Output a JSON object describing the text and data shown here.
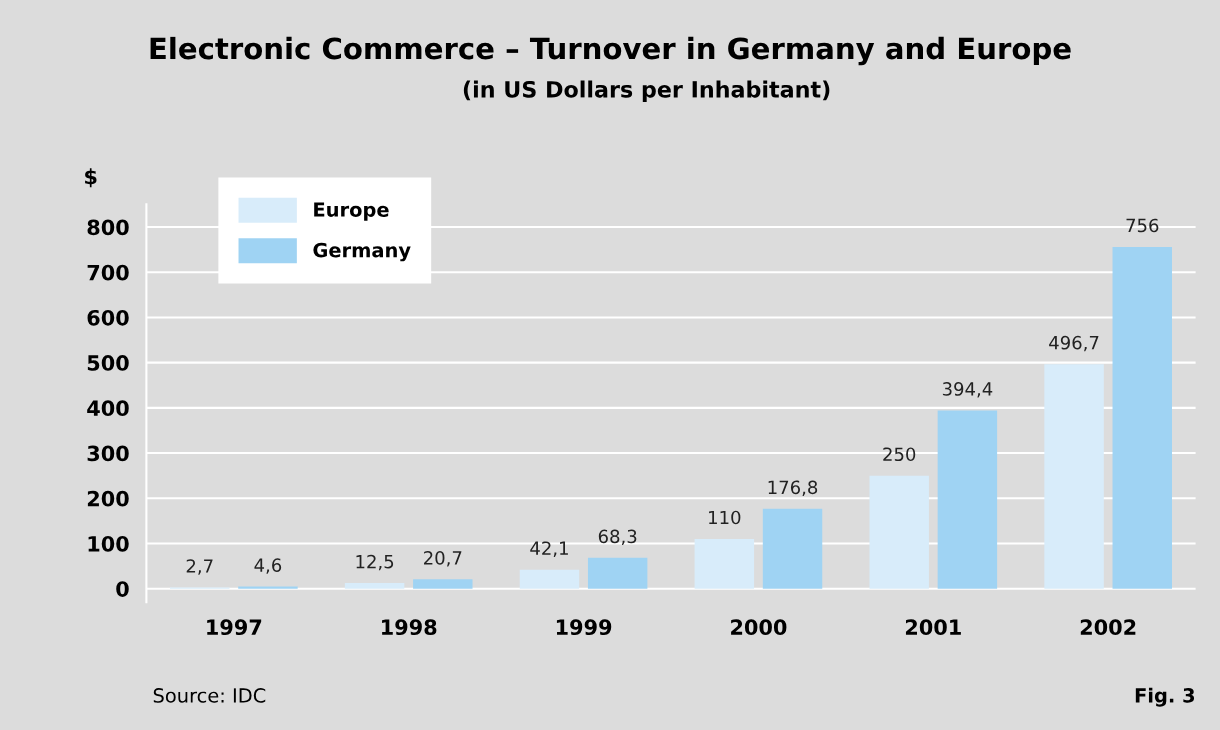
{
  "chart_data": {
    "type": "bar",
    "title": "Electronic Commerce – Turnover in Germany and Europe",
    "subtitle": "(in US Dollars per Inhabitant)",
    "ylabel": "$",
    "categories": [
      "1997",
      "1998",
      "1999",
      "2000",
      "2001",
      "2002"
    ],
    "series": [
      {
        "name": "Europe",
        "color": "#d8ecfa",
        "values": [
          2.7,
          12.5,
          42.1,
          110,
          250,
          496.7
        ],
        "value_labels": [
          "2,7",
          "12,5",
          "42,1",
          "110",
          "250",
          "496,7"
        ]
      },
      {
        "name": "Germany",
        "color": "#9fd3f3",
        "values": [
          4.6,
          20.7,
          68.3,
          176.8,
          394.4,
          756
        ],
        "value_labels": [
          "4,6",
          "20,7",
          "68,3",
          "176,8",
          "394,4",
          "756"
        ]
      }
    ],
    "ylim": [
      -30,
      850
    ],
    "yticks": [
      0,
      100,
      200,
      300,
      400,
      500,
      600,
      700,
      800
    ],
    "grid": "y",
    "legend": "top left",
    "annotations": [
      "Source: IDC",
      "Fig. 3"
    ]
  }
}
